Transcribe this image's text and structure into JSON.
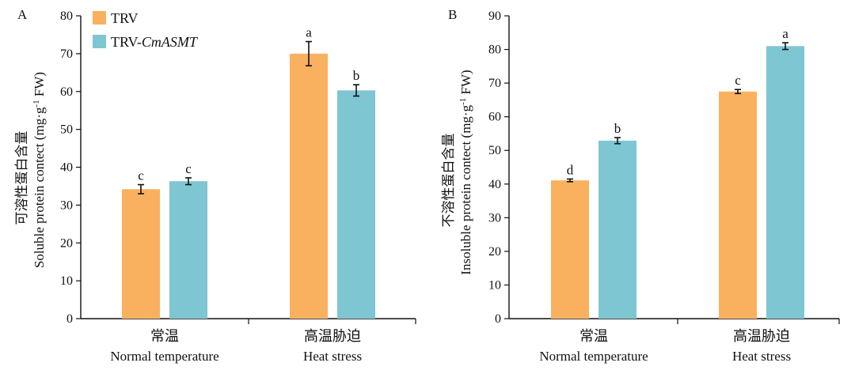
{
  "colors": {
    "trv": "#F9B160",
    "asmt": "#7EC6D1",
    "axis": "#111111"
  },
  "legend": {
    "trv": "TRV",
    "asmt_prefix": "TRV-",
    "asmt_gene": "CmASMT"
  },
  "chart_data": [
    {
      "type": "bar",
      "panel_label": "A",
      "ylabel_cn": "可溶性蛋白含量",
      "ylabel_en": "Soluble protein contect (mg·g",
      "ylabel_sup": "-1",
      "ylabel_unit": " FW)",
      "ylim": [
        0,
        80
      ],
      "yticks": [
        0,
        10,
        20,
        30,
        40,
        50,
        60,
        70,
        80
      ],
      "categories": [
        {
          "cn": "常温",
          "en": "Normal temperature"
        },
        {
          "cn": "高温胁迫",
          "en": "Heat stress"
        }
      ],
      "series": [
        {
          "name": "TRV",
          "values": [
            34.2,
            70.0
          ],
          "errors": [
            1.2,
            3.2
          ],
          "letters": [
            "c",
            "a"
          ]
        },
        {
          "name": "TRV-CmASMT",
          "values": [
            36.3,
            60.3
          ],
          "errors": [
            0.9,
            1.5
          ],
          "letters": [
            "c",
            "b"
          ]
        }
      ]
    },
    {
      "type": "bar",
      "panel_label": "B",
      "ylabel_cn": "不溶性蛋白含量",
      "ylabel_en": "Insoluble protein contect (mg·g",
      "ylabel_sup": "-1",
      "ylabel_unit": " FW)",
      "ylim": [
        0,
        90
      ],
      "yticks": [
        0,
        10,
        20,
        30,
        40,
        50,
        60,
        70,
        80,
        90
      ],
      "categories": [
        {
          "cn": "常温",
          "en": "Normal temperature"
        },
        {
          "cn": "高温胁迫",
          "en": "Heat stress"
        }
      ],
      "series": [
        {
          "name": "TRV",
          "values": [
            41.1,
            67.5
          ],
          "errors": [
            0.4,
            0.6
          ],
          "letters": [
            "d",
            "c"
          ]
        },
        {
          "name": "TRV-CmASMT",
          "values": [
            52.9,
            81.0
          ],
          "errors": [
            0.9,
            1.0
          ],
          "letters": [
            "b",
            "a"
          ]
        }
      ]
    }
  ]
}
